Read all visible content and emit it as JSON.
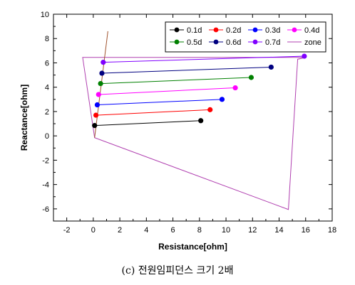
{
  "chart_data": {
    "type": "scatter",
    "xlabel": "Resistance[ohm]",
    "ylabel": "Reactance[ohm]",
    "xlim": [
      -3,
      18
    ],
    "ylim": [
      -7,
      10
    ],
    "x_ticks": [
      -2,
      0,
      2,
      4,
      6,
      8,
      10,
      12,
      14,
      16,
      18
    ],
    "y_ticks": [
      -6,
      -4,
      -2,
      0,
      2,
      4,
      6,
      8,
      10
    ],
    "legend_position": "top-right",
    "series": [
      {
        "name": "0.1d",
        "color": "#000000",
        "points": [
          [
            0.1,
            0.85
          ],
          [
            8.1,
            1.25
          ]
        ]
      },
      {
        "name": "0.2d",
        "color": "#ff0000",
        "points": [
          [
            0.2,
            1.7
          ],
          [
            8.8,
            2.15
          ]
        ]
      },
      {
        "name": "0.3d",
        "color": "#0000ff",
        "points": [
          [
            0.3,
            2.55
          ],
          [
            9.7,
            3.0
          ]
        ]
      },
      {
        "name": "0.4d",
        "color": "#ff00ff",
        "points": [
          [
            0.4,
            3.4
          ],
          [
            10.7,
            3.95
          ]
        ]
      },
      {
        "name": "0.5d",
        "color": "#008000",
        "points": [
          [
            0.55,
            4.3
          ],
          [
            11.9,
            4.8
          ]
        ]
      },
      {
        "name": "0.6d",
        "color": "#000080",
        "points": [
          [
            0.65,
            5.15
          ],
          [
            13.4,
            5.65
          ]
        ]
      },
      {
        "name": "0.7d",
        "color": "#8000ff",
        "points": [
          [
            0.75,
            6.05
          ],
          [
            15.9,
            6.55
          ]
        ]
      }
    ],
    "zone": {
      "name": "zone",
      "color": "#b040b0",
      "polygon": [
        [
          -0.8,
          6.45
        ],
        [
          16.0,
          6.45
        ],
        [
          15.4,
          6.3
        ],
        [
          14.7,
          -6.05
        ],
        [
          0.1,
          -0.15
        ]
      ],
      "line": [
        [
          0.1,
          -0.15
        ],
        [
          1.1,
          8.6
        ]
      ],
      "line_color": "#a0522d"
    },
    "caption": "(c) 전원임피던스 크기 2배"
  }
}
